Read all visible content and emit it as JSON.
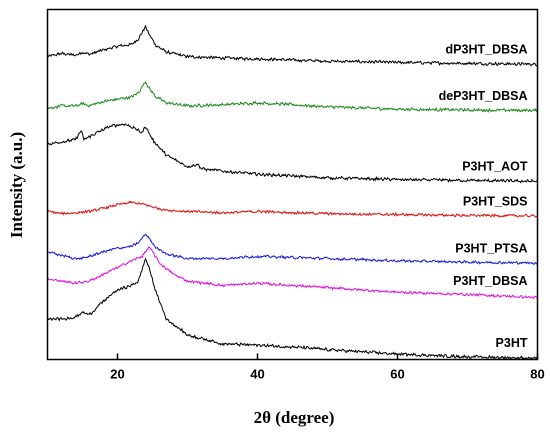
{
  "chart_data": {
    "type": "line",
    "title": "",
    "xlabel": "2θ (degree)",
    "ylabel": "Intensity (a.u.)",
    "xlim": [
      10,
      80
    ],
    "xticks": [
      20,
      40,
      60,
      80
    ],
    "ylim": [
      0,
      7.8
    ],
    "y_tick_labels": false,
    "grid": false,
    "legend": "none (series labelled directly on the right)",
    "stacked_offset": true,
    "series": [
      {
        "name": "dP3HT_DBSA",
        "color": "#000000",
        "offset": 6.7,
        "noise": 0.04,
        "points": [
          [
            10,
            0.05
          ],
          [
            12,
            0.12
          ],
          [
            14,
            0.08
          ],
          [
            15,
            0.15
          ],
          [
            16,
            0.1
          ],
          [
            18,
            0.2
          ],
          [
            20,
            0.28
          ],
          [
            22,
            0.32
          ],
          [
            23,
            0.45
          ],
          [
            24,
            0.72
          ],
          [
            24.5,
            0.55
          ],
          [
            25.5,
            0.3
          ],
          [
            27,
            0.15
          ],
          [
            30,
            0.05
          ],
          [
            35,
            0.02
          ],
          [
            40,
            0.0
          ],
          [
            50,
            -0.05
          ],
          [
            60,
            -0.08
          ],
          [
            70,
            -0.1
          ],
          [
            80,
            -0.12
          ]
        ]
      },
      {
        "name": "deP3HT_DBSA",
        "color": "#1e8a1e",
        "offset": 5.6,
        "noise": 0.04,
        "points": [
          [
            10,
            0.0
          ],
          [
            12,
            0.05
          ],
          [
            14,
            0.05
          ],
          [
            15,
            0.1
          ],
          [
            16,
            0.06
          ],
          [
            18,
            0.15
          ],
          [
            20,
            0.2
          ],
          [
            22,
            0.25
          ],
          [
            23,
            0.35
          ],
          [
            24,
            0.6
          ],
          [
            24.5,
            0.45
          ],
          [
            25.5,
            0.25
          ],
          [
            27,
            0.12
          ],
          [
            30,
            0.05
          ],
          [
            35,
            0.08
          ],
          [
            40,
            0.12
          ],
          [
            45,
            0.08
          ],
          [
            50,
            0.03
          ],
          [
            60,
            -0.02
          ],
          [
            70,
            -0.04
          ],
          [
            80,
            -0.05
          ]
        ]
      },
      {
        "name": "P3HT_AOT",
        "color": "#000000",
        "offset": 4.05,
        "noise": 0.04,
        "points": [
          [
            10,
            0.75
          ],
          [
            12,
            0.8
          ],
          [
            14,
            0.85
          ],
          [
            14.8,
            1.05
          ],
          [
            15.2,
            0.85
          ],
          [
            17,
            1.0
          ],
          [
            19,
            1.15
          ],
          [
            21,
            1.2
          ],
          [
            22.5,
            1.1
          ],
          [
            23.5,
            1.0
          ],
          [
            24,
            1.15
          ],
          [
            25,
            0.85
          ],
          [
            27,
            0.5
          ],
          [
            30,
            0.25
          ],
          [
            31.5,
            0.3
          ],
          [
            32,
            0.2
          ],
          [
            35,
            0.15
          ],
          [
            40,
            0.08
          ],
          [
            50,
            0.0
          ],
          [
            60,
            -0.04
          ],
          [
            70,
            -0.06
          ],
          [
            80,
            -0.08
          ]
        ]
      },
      {
        "name": "P3HT_SDS",
        "color": "#e01010",
        "offset": 3.25,
        "noise": 0.035,
        "points": [
          [
            10,
            0.05
          ],
          [
            12,
            0.0
          ],
          [
            14,
            0.02
          ],
          [
            16,
            0.05
          ],
          [
            18,
            0.12
          ],
          [
            20,
            0.2
          ],
          [
            22,
            0.25
          ],
          [
            24,
            0.2
          ],
          [
            25,
            0.15
          ],
          [
            27,
            0.08
          ],
          [
            30,
            0.05
          ],
          [
            35,
            0.02
          ],
          [
            40,
            0.05
          ],
          [
            50,
            0.0
          ],
          [
            60,
            -0.02
          ],
          [
            70,
            -0.04
          ],
          [
            80,
            -0.05
          ]
        ]
      },
      {
        "name": "P3HT_PTSA",
        "color": "#1a1ae0",
        "offset": 2.2,
        "noise": 0.035,
        "points": [
          [
            10,
            0.2
          ],
          [
            12,
            0.12
          ],
          [
            14,
            0.05
          ],
          [
            15,
            0.05
          ],
          [
            16,
            0.1
          ],
          [
            18,
            0.2
          ],
          [
            20,
            0.28
          ],
          [
            22,
            0.32
          ],
          [
            23,
            0.4
          ],
          [
            24,
            0.6
          ],
          [
            24.5,
            0.5
          ],
          [
            25.5,
            0.3
          ],
          [
            27,
            0.15
          ],
          [
            30,
            0.05
          ],
          [
            35,
            0.05
          ],
          [
            40,
            0.1
          ],
          [
            50,
            0.05
          ],
          [
            60,
            0.0
          ],
          [
            70,
            -0.03
          ],
          [
            80,
            -0.05
          ]
        ]
      },
      {
        "name": "P3HT_DBSA",
        "color": "#e010e0",
        "offset": 1.2,
        "noise": 0.035,
        "points": [
          [
            10,
            0.6
          ],
          [
            12,
            0.55
          ],
          [
            14,
            0.5
          ],
          [
            16,
            0.55
          ],
          [
            18,
            0.7
          ],
          [
            20,
            0.85
          ],
          [
            22,
            1.0
          ],
          [
            23.5,
            1.1
          ],
          [
            24.5,
            1.3
          ],
          [
            25,
            1.2
          ],
          [
            26,
            0.95
          ],
          [
            28,
            0.7
          ],
          [
            30,
            0.55
          ],
          [
            35,
            0.45
          ],
          [
            40,
            0.5
          ],
          [
            45,
            0.45
          ],
          [
            50,
            0.4
          ],
          [
            60,
            0.3
          ],
          [
            70,
            0.25
          ],
          [
            80,
            0.18
          ]
        ]
      },
      {
        "name": "P3HT",
        "color": "#000000",
        "offset": 0.0,
        "noise": 0.04,
        "points": [
          [
            10,
            0.9
          ],
          [
            12,
            0.9
          ],
          [
            14,
            0.95
          ],
          [
            15,
            1.05
          ],
          [
            16,
            1.0
          ],
          [
            18,
            1.3
          ],
          [
            20,
            1.55
          ],
          [
            22,
            1.65
          ],
          [
            23,
            1.75
          ],
          [
            24,
            2.25
          ],
          [
            24.5,
            2.05
          ],
          [
            25.5,
            1.5
          ],
          [
            27,
            0.9
          ],
          [
            30,
            0.55
          ],
          [
            35,
            0.35
          ],
          [
            40,
            0.32
          ],
          [
            45,
            0.28
          ],
          [
            50,
            0.22
          ],
          [
            60,
            0.12
          ],
          [
            70,
            0.06
          ],
          [
            80,
            0.03
          ]
        ]
      }
    ]
  }
}
